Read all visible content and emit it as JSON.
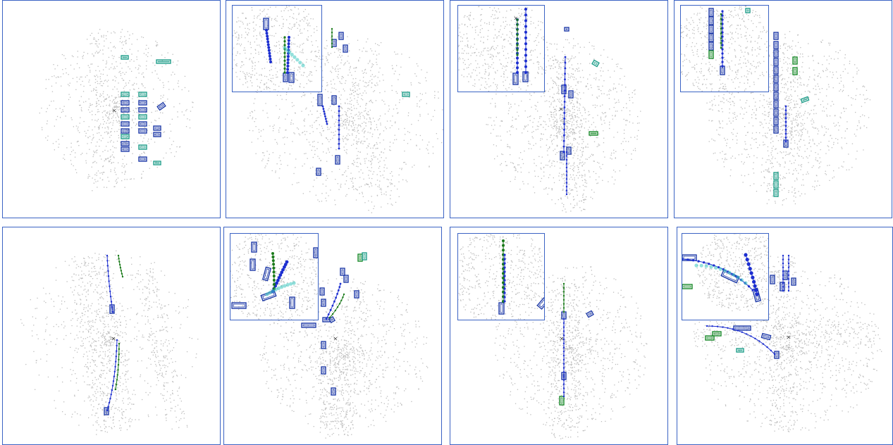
{
  "figure": {
    "background": "#ffffff",
    "frame_color": "#3b63c4",
    "lidar_color": "#bdbdbd",
    "box_colors": {
      "ground_truth": "#1a8a2a",
      "prediction": "#1e3aa8",
      "alternative": "#1f9e8a"
    },
    "trajectory_colors": {
      "prediction": "#1c2ed0",
      "ground_truth": "#1a7a1a",
      "alternative": "#3cc8c0"
    },
    "ego_marker": "×"
  },
  "panels": [
    {
      "id": 1,
      "has_inset": false,
      "scene": "parking-lot"
    },
    {
      "id": 2,
      "has_inset": true,
      "scene": "intersection-turn"
    },
    {
      "id": 3,
      "has_inset": true,
      "scene": "straight-road"
    },
    {
      "id": 4,
      "has_inset": true,
      "scene": "street-with-parked-cars"
    },
    {
      "id": 5,
      "has_inset": false,
      "scene": "curved-highway"
    },
    {
      "id": 6,
      "has_inset": true,
      "scene": "roundabout"
    },
    {
      "id": 7,
      "has_inset": true,
      "scene": "straight-road"
    },
    {
      "id": 8,
      "has_inset": true,
      "scene": "intersection-left-turn"
    }
  ]
}
